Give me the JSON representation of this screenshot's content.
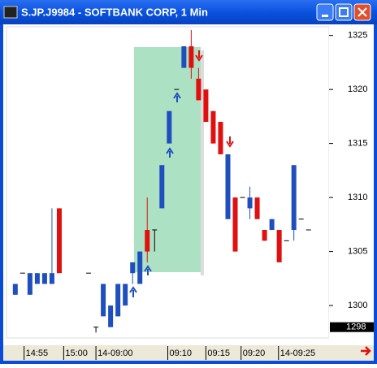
{
  "chart_data": {
    "type": "candlestick",
    "title": "S.JP.J9984 - SOFTBANK CORP, 1 Min",
    "x": [
      0,
      1,
      2,
      3,
      4,
      5,
      6,
      10,
      11,
      12,
      13,
      14,
      15,
      16,
      17,
      18,
      19,
      20,
      21,
      22,
      23,
      24,
      25,
      26,
      27,
      28,
      29,
      30,
      31,
      32,
      33,
      34,
      35,
      36,
      37,
      38,
      39,
      40
    ],
    "open": [
      1301,
      1303,
      1301,
      1302,
      1302,
      1302,
      1309,
      1303,
      1298,
      1299,
      1298,
      1299,
      1300,
      1303,
      1302,
      1307,
      1307,
      1309,
      1315,
      1320,
      1322,
      1324,
      1321,
      1320,
      1318,
      1317,
      1308,
      1310,
      1310,
      1309,
      1310,
      1307,
      1307,
      1307,
      1306,
      1307,
      1308,
      1307
    ],
    "high": [
      1302,
      1303,
      1303,
      1303,
      1303,
      1309,
      1309,
      1303,
      1298,
      1302,
      1300,
      1302,
      1302,
      1304,
      1305,
      1310,
      1307,
      1313,
      1318,
      1320,
      1324,
      1325.5,
      1322,
      1320,
      1318,
      1317,
      1314,
      1310,
      1310,
      1311,
      1310,
      1307,
      1308,
      1307,
      1306,
      1313,
      1308,
      1307
    ],
    "low": [
      1301,
      1303,
      1301,
      1302,
      1302,
      1302,
      1303,
      1303,
      1297.5,
      1299,
      1298,
      1299,
      1300,
      1302,
      1302,
      1304,
      1305,
      1309,
      1315,
      1320,
      1322,
      1321,
      1319,
      1317,
      1315,
      1314,
      1308,
      1305,
      1310,
      1308,
      1308,
      1306,
      1307,
      1304,
      1306,
      1306,
      1308,
      1307
    ],
    "close": [
      1302,
      1303,
      1303,
      1303,
      1303,
      1303,
      1303,
      1303,
      1298,
      1302,
      1300,
      1302,
      1302,
      1304,
      1305,
      1305,
      1307,
      1313,
      1318,
      1320,
      1324,
      1322,
      1319,
      1317,
      1315,
      1314,
      1314,
      1305,
      1310,
      1310,
      1308,
      1306,
      1308,
      1304,
      1306,
      1313,
      1308,
      1307
    ],
    "up_color": "#1f4fbf",
    "down_color": "#e01010",
    "flat_color": "#000000",
    "xlim": [
      -1.2,
      42.8
    ],
    "ylim": [
      1297,
      1325.8
    ],
    "xticks": [
      {
        "value": 1.2,
        "label": "14:55"
      },
      {
        "value": 6.6,
        "label": "15:00"
      },
      {
        "value": 11,
        "label": "14-09:00"
      },
      {
        "value": 20.8,
        "label": "09:10"
      },
      {
        "value": 26,
        "label": "09:15"
      },
      {
        "value": 30.8,
        "label": "09:20"
      },
      {
        "value": 35.9,
        "label": "14-09:25"
      }
    ],
    "yticks": [
      1300,
      1305,
      1310,
      1315,
      1320,
      1325
    ],
    "last_price": 1298
  }
}
